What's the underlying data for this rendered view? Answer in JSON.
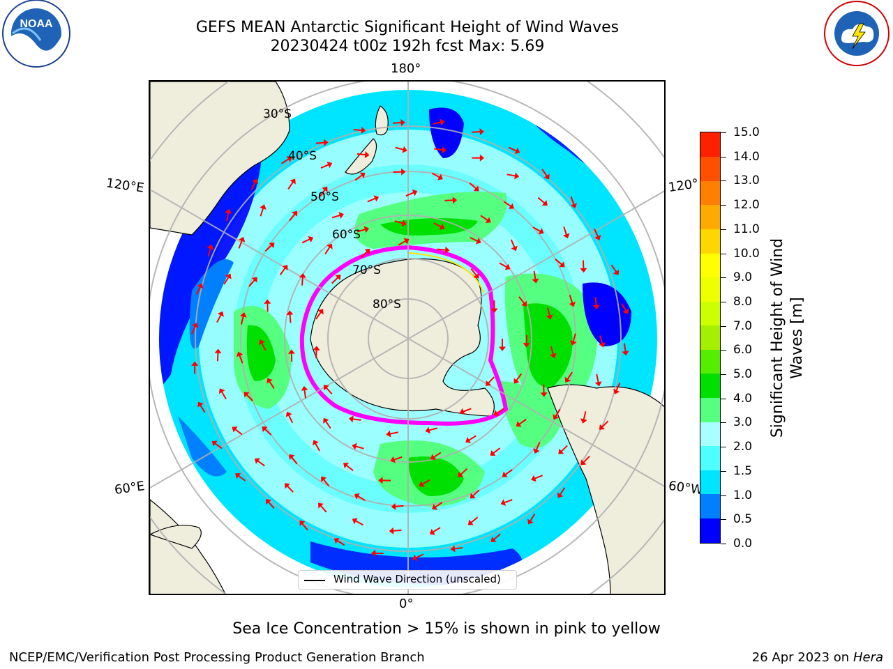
{
  "header": {
    "title_line1": "GEFS MEAN Antarctic Significant Height of Wind Waves",
    "title_line2": "20230424 t00z 192h fcst   Max: 5.69"
  },
  "logos": {
    "left": {
      "icon": "noaa-logo",
      "text": "NOAA",
      "ring_text": "NATIONAL OCEANIC AND ATMOSPHERIC ADMINISTRATION · U.S. DEPARTMENT OF COMMERCE"
    },
    "right": {
      "icon": "nws-logo",
      "ring_text": "NATIONAL WEATHER SERVICE"
    }
  },
  "map": {
    "projection": "south-polar-stereographic",
    "longitude_labels": {
      "top": "180°",
      "bottom": "0°",
      "left_upper": "120°E",
      "left_lower": "60°E",
      "right_upper": "120°",
      "right_lower": "60°W"
    },
    "latitude_labels": [
      "30°S",
      "40°S",
      "50°S",
      "60°S",
      "70°S",
      "80°S"
    ],
    "colors": {
      "land": "#efeedd",
      "ocean_deep": "#0000ff",
      "sea_ice": "#ff00ff",
      "arrow": "#ff0000",
      "grid": "#b0b0b0"
    }
  },
  "legend": {
    "label": "Wind Wave Direction (unscaled)"
  },
  "colorbar": {
    "label_line1": "Significant Height of Wind",
    "label_line2": "Waves [m]",
    "ticks": [
      "0.0",
      "0.5",
      "1.0",
      "1.5",
      "2.0",
      "3.0",
      "4.0",
      "5.0",
      "6.0",
      "7.0",
      "8.0",
      "9.0",
      "10.0",
      "11.0",
      "12.0",
      "13.0",
      "14.0",
      "15.0"
    ],
    "colors": [
      "#0000ff",
      "#0080ff",
      "#00e5ff",
      "#4dffff",
      "#a8ffff",
      "#55ff80",
      "#00e000",
      "#55ee00",
      "#a5ef00",
      "#ccff00",
      "#eeff00",
      "#ffff00",
      "#ffd700",
      "#ffaa00",
      "#ff8000",
      "#ff5000",
      "#ff2000"
    ]
  },
  "caption": "Sea Ice Concentration > 15% is shown in pink to yellow",
  "footer": {
    "left": "NCEP/EMC/Verification Post Processing Product Generation Branch",
    "right_prefix": "26 Apr 2023 on ",
    "right_host": "Hera"
  }
}
